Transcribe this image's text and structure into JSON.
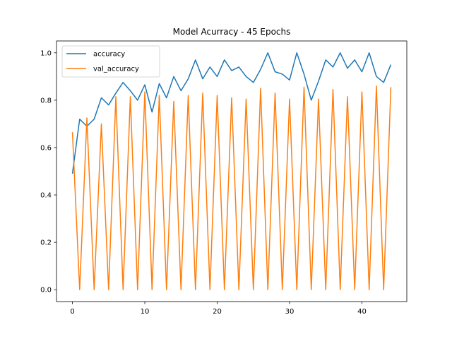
{
  "chart_data": {
    "type": "line",
    "title": "Model Acurracy - 45 Epochs",
    "xlabel": "",
    "ylabel": "",
    "xlim": [
      -2.2,
      46.2
    ],
    "ylim": [
      -0.05,
      1.05
    ],
    "xticks": [
      0,
      10,
      20,
      30,
      40
    ],
    "yticks": [
      0.0,
      0.2,
      0.4,
      0.6,
      0.8,
      1.0
    ],
    "ytick_labels": [
      "0.0",
      "0.2",
      "0.4",
      "0.6",
      "0.8",
      "1.0"
    ],
    "grid": false,
    "legend_position": "top-left",
    "x": [
      0,
      1,
      2,
      3,
      4,
      5,
      6,
      7,
      8,
      9,
      10,
      11,
      12,
      13,
      14,
      15,
      16,
      17,
      18,
      19,
      20,
      21,
      22,
      23,
      24,
      25,
      26,
      27,
      28,
      29,
      30,
      31,
      32,
      33,
      34,
      35,
      36,
      37,
      38,
      39,
      40,
      41,
      42,
      43,
      44
    ],
    "series": [
      {
        "name": "accuracy",
        "color": "#1f77b4",
        "values": [
          0.49,
          0.72,
          0.69,
          0.72,
          0.81,
          0.78,
          0.83,
          0.875,
          0.84,
          0.8,
          0.865,
          0.75,
          0.87,
          0.81,
          0.9,
          0.84,
          0.89,
          0.97,
          0.89,
          0.94,
          0.9,
          0.97,
          0.925,
          0.94,
          0.9,
          0.875,
          0.93,
          1.0,
          0.92,
          0.91,
          0.885,
          1.0,
          0.91,
          0.8,
          0.88,
          0.97,
          0.94,
          1.0,
          0.935,
          0.97,
          0.92,
          1.0,
          0.9,
          0.875,
          0.95
        ]
      },
      {
        "name": "val_accuracy",
        "color": "#ff7f0e",
        "values": [
          0.665,
          0.0,
          0.725,
          0.0,
          0.7,
          0.0,
          0.815,
          0.0,
          0.815,
          0.0,
          0.835,
          0.0,
          0.82,
          0.0,
          0.795,
          0.0,
          0.82,
          0.0,
          0.83,
          0.0,
          0.82,
          0.0,
          0.81,
          0.0,
          0.805,
          0.0,
          0.85,
          0.0,
          0.83,
          0.0,
          0.805,
          0.0,
          0.855,
          0.0,
          0.805,
          0.0,
          0.845,
          0.0,
          0.815,
          0.0,
          0.835,
          0.0,
          0.86,
          0.0,
          0.855
        ]
      }
    ]
  }
}
